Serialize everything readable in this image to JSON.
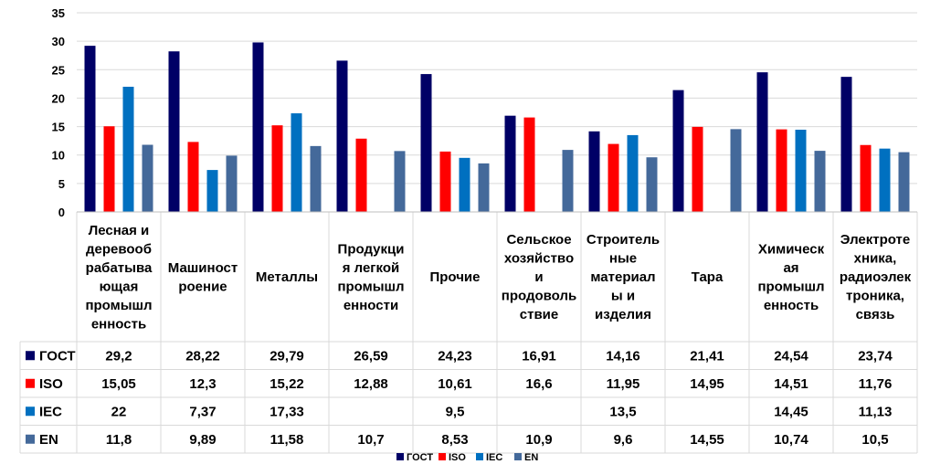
{
  "chart_data": {
    "type": "bar",
    "categories": [
      [
        "Лесная и",
        "деревооб",
        "рабатыва",
        "ющая",
        "промышл",
        "енность"
      ],
      [
        "Машиност",
        "роение"
      ],
      [
        "Металлы"
      ],
      [
        "Продукци",
        "я легкой",
        "промышл",
        "енности"
      ],
      [
        "Прочие"
      ],
      [
        "Сельское",
        "хозяйство",
        "и",
        "продоволь",
        "ствие"
      ],
      [
        "Строитель",
        "ные",
        "материал",
        "ы и",
        "изделия"
      ],
      [
        "Тара"
      ],
      [
        "Химическ",
        "ая",
        "промышл",
        "енность"
      ],
      [
        "Электроте",
        "хника,",
        "радиоэлек",
        "троника,",
        "связь"
      ]
    ],
    "series": [
      {
        "name": "ГОСТ",
        "color": "#000066",
        "values": [
          29.2,
          28.22,
          29.79,
          26.59,
          24.23,
          16.91,
          14.16,
          21.41,
          24.54,
          23.74
        ],
        "labels": [
          "29,2",
          "28,22",
          "29,79",
          "26,59",
          "24,23",
          "16,91",
          "14,16",
          "21,41",
          "24,54",
          "23,74"
        ]
      },
      {
        "name": "ISO",
        "color": "#ff0000",
        "values": [
          15.05,
          12.3,
          15.22,
          12.88,
          10.61,
          16.6,
          11.95,
          14.95,
          14.51,
          11.76
        ],
        "labels": [
          "15,05",
          "12,3",
          "15,22",
          "12,88",
          "10,61",
          "16,6",
          "11,95",
          "14,95",
          "14,51",
          "11,76"
        ]
      },
      {
        "name": "IEC",
        "color": "#0070c0",
        "values": [
          22,
          7.37,
          17.33,
          null,
          9.5,
          null,
          13.5,
          null,
          14.45,
          11.13
        ],
        "labels": [
          "22",
          "7,37",
          "17,33",
          "",
          "9,5",
          "",
          "13,5",
          "",
          "14,45",
          "11,13"
        ]
      },
      {
        "name": "EN",
        "color": "#44699a",
        "values": [
          11.8,
          9.89,
          11.58,
          10.7,
          8.53,
          10.9,
          9.6,
          14.55,
          10.74,
          10.5
        ],
        "labels": [
          "11,8",
          "9,89",
          "11,58",
          "10,7",
          "8,53",
          "10,9",
          "9,6",
          "14,55",
          "10,74",
          "10,5"
        ]
      }
    ],
    "yticks": [
      "0",
      "5",
      "10",
      "15",
      "20",
      "25",
      "30",
      "35"
    ],
    "ylim": [
      0,
      35
    ],
    "grid": true,
    "legend_position": "bottom",
    "data_table": true
  }
}
